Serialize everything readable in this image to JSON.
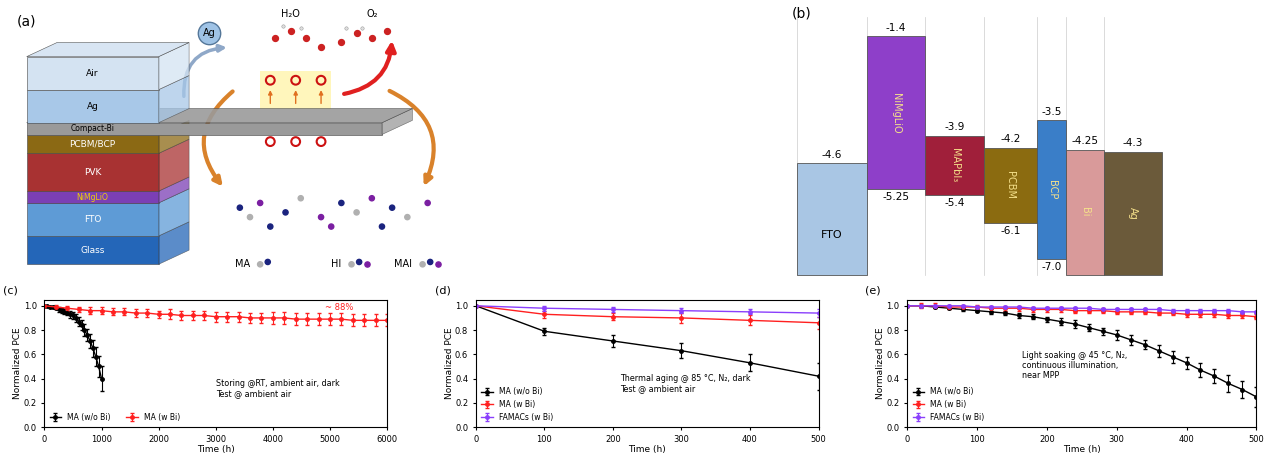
{
  "diagram_a": {
    "label": "(a)",
    "layers": [
      {
        "name": "Glass",
        "color": "#2466b8"
      },
      {
        "name": "FTO",
        "color": "#5e9bd6"
      },
      {
        "name": "NiMgLiO",
        "color": "#7b3fb5"
      },
      {
        "name": "PVK",
        "color": "#a83232"
      },
      {
        "name": "PCBM/BCP",
        "color": "#8b6914"
      },
      {
        "name": "Compact-Bi",
        "color": "#9a9a9a"
      },
      {
        "name": "Ag",
        "color": "#a8c8e8"
      },
      {
        "name": "Air",
        "color": "#d4e3f2"
      }
    ],
    "metal_ion": "Ag",
    "ambient": [
      "H₂O",
      "O₂"
    ],
    "species": [
      "MA",
      "HI",
      "MAI"
    ]
  },
  "diagram_b": {
    "label": "(b)",
    "layers": [
      {
        "name": "FTO",
        "top": -4.6,
        "bottom": null,
        "color": "#a9c6e4"
      },
      {
        "name": "NiMgLiO",
        "top": -1.4,
        "bottom": -5.25,
        "color": "#8e3fc9"
      },
      {
        "name": "MAPbI₃",
        "top": -3.9,
        "bottom": -5.4,
        "color": "#a01f3a"
      },
      {
        "name": "PCBM",
        "top": -4.2,
        "bottom": -6.1,
        "color": "#8b6b10"
      },
      {
        "name": "BCP",
        "top": -3.5,
        "bottom": -7.0,
        "color": "#3a7ec8"
      },
      {
        "name": "Bi",
        "top": -4.25,
        "bottom": null,
        "color": "#d99a9a"
      },
      {
        "name": "Ag",
        "top": -4.3,
        "bottom": null,
        "color": "#6b5a3a"
      }
    ]
  },
  "chart_data": [
    {
      "type": "line",
      "label": "(c)",
      "x_label": "Time (h)",
      "y_label": "Normalized PCE",
      "xlim": [
        0,
        6000
      ],
      "xticks": [
        0,
        1000,
        2000,
        3000,
        4000,
        5000,
        6000
      ],
      "ylim": [
        0.0,
        1.05
      ],
      "yticks": [
        0.0,
        0.2,
        0.4,
        0.6,
        0.8,
        1.0
      ],
      "legend": "lower left",
      "note": [
        "Storing @RT, ambient air, dark",
        "Test @ ambient air"
      ],
      "annotations": [
        {
          "text": "~ 88%",
          "color": "#ff2020"
        }
      ],
      "series": [
        {
          "name": "MA (w/o Bi)",
          "color": "#000000",
          "marker": "o",
          "x": [
            0,
            50,
            100,
            150,
            200,
            250,
            300,
            350,
            400,
            450,
            500,
            550,
            600,
            650,
            700,
            750,
            800,
            850,
            900,
            950,
            1000
          ],
          "values": [
            1.0,
            1.0,
            0.99,
            0.99,
            0.98,
            0.97,
            0.96,
            0.95,
            0.94,
            0.93,
            0.92,
            0.9,
            0.87,
            0.84,
            0.8,
            0.76,
            0.71,
            0.65,
            0.58,
            0.5,
            0.4
          ],
          "errors": [
            0.0,
            0.0,
            0.01,
            0.01,
            0.01,
            0.02,
            0.02,
            0.02,
            0.02,
            0.03,
            0.03,
            0.03,
            0.04,
            0.04,
            0.05,
            0.05,
            0.06,
            0.07,
            0.08,
            0.09,
            0.1
          ]
        },
        {
          "name": "MA (w Bi)",
          "color": "#ff2020",
          "marker": "o",
          "x": [
            0,
            200,
            400,
            600,
            800,
            1000,
            1200,
            1400,
            1600,
            1800,
            2000,
            2200,
            2400,
            2600,
            2800,
            3000,
            3200,
            3400,
            3600,
            3800,
            4000,
            4200,
            4400,
            4600,
            4800,
            5000,
            5200,
            5400,
            5600,
            5800,
            6000
          ],
          "values": [
            1.0,
            0.99,
            0.98,
            0.97,
            0.96,
            0.96,
            0.95,
            0.95,
            0.94,
            0.94,
            0.93,
            0.93,
            0.92,
            0.92,
            0.92,
            0.91,
            0.91,
            0.91,
            0.9,
            0.9,
            0.9,
            0.9,
            0.89,
            0.89,
            0.89,
            0.89,
            0.89,
            0.88,
            0.88,
            0.88,
            0.88
          ],
          "errors": [
            0.0,
            0.02,
            0.02,
            0.02,
            0.03,
            0.03,
            0.03,
            0.03,
            0.03,
            0.03,
            0.03,
            0.04,
            0.04,
            0.04,
            0.04,
            0.04,
            0.04,
            0.04,
            0.04,
            0.04,
            0.05,
            0.05,
            0.05,
            0.05,
            0.05,
            0.05,
            0.05,
            0.05,
            0.05,
            0.05,
            0.05
          ]
        }
      ]
    },
    {
      "type": "line",
      "label": "(d)",
      "x_label": "Time (h)",
      "y_label": "Normalized PCE",
      "xlim": [
        0,
        500
      ],
      "xticks": [
        0,
        100,
        200,
        300,
        400,
        500
      ],
      "ylim": [
        0.0,
        1.05
      ],
      "yticks": [
        0.0,
        0.2,
        0.4,
        0.6,
        0.8,
        1.0
      ],
      "legend": "lower left",
      "note": [
        "Thermal aging @ 85 °C, N₂, dark",
        "Test @ ambient air"
      ],
      "annotations": [],
      "series": [
        {
          "name": "MA (w/o Bi)",
          "color": "#000000",
          "marker": "o",
          "x": [
            0,
            100,
            200,
            300,
            400,
            500
          ],
          "values": [
            1.0,
            0.79,
            0.71,
            0.63,
            0.53,
            0.42
          ],
          "errors": [
            0.0,
            0.03,
            0.05,
            0.06,
            0.07,
            0.11
          ]
        },
        {
          "name": "MA (w Bi)",
          "color": "#ff2020",
          "marker": "o",
          "x": [
            0,
            100,
            200,
            300,
            400,
            500
          ],
          "values": [
            1.0,
            0.93,
            0.91,
            0.9,
            0.88,
            0.86
          ],
          "errors": [
            0.0,
            0.03,
            0.03,
            0.04,
            0.04,
            0.05
          ]
        },
        {
          "name": "FAMACs (w Bi)",
          "color": "#8a3ffc",
          "marker": "o",
          "x": [
            0,
            100,
            200,
            300,
            400,
            500
          ],
          "values": [
            1.0,
            0.98,
            0.97,
            0.96,
            0.95,
            0.94
          ],
          "errors": [
            0.0,
            0.02,
            0.02,
            0.02,
            0.02,
            0.03
          ]
        }
      ]
    },
    {
      "type": "line",
      "label": "(e)",
      "x_label": "Time (h)",
      "y_label": "Normalized PCE",
      "xlim": [
        0,
        500
      ],
      "xticks": [
        0,
        100,
        200,
        300,
        400,
        500
      ],
      "ylim": [
        0.0,
        1.05
      ],
      "yticks": [
        0.0,
        0.2,
        0.4,
        0.6,
        0.8,
        1.0
      ],
      "legend": "lower left",
      "note": [
        "Light soaking @ 45 °C, N₂,",
        "continuous illumination,",
        "near MPP"
      ],
      "annotations": [],
      "series": [
        {
          "name": "MA (w/o Bi)",
          "color": "#000000",
          "marker": "o",
          "x": [
            0,
            20,
            40,
            60,
            80,
            100,
            120,
            140,
            160,
            180,
            200,
            220,
            240,
            260,
            280,
            300,
            320,
            340,
            360,
            380,
            400,
            420,
            440,
            460,
            480,
            500
          ],
          "values": [
            1.0,
            1.0,
            0.99,
            0.98,
            0.97,
            0.96,
            0.95,
            0.94,
            0.92,
            0.91,
            0.89,
            0.87,
            0.85,
            0.82,
            0.79,
            0.76,
            0.72,
            0.68,
            0.63,
            0.58,
            0.53,
            0.47,
            0.42,
            0.36,
            0.31,
            0.25
          ],
          "errors": [
            0.0,
            0.01,
            0.01,
            0.01,
            0.01,
            0.01,
            0.02,
            0.02,
            0.02,
            0.02,
            0.02,
            0.03,
            0.03,
            0.03,
            0.03,
            0.04,
            0.04,
            0.04,
            0.05,
            0.05,
            0.05,
            0.06,
            0.06,
            0.07,
            0.07,
            0.08
          ]
        },
        {
          "name": "MA (w Bi)",
          "color": "#ff2020",
          "marker": "o",
          "x": [
            0,
            20,
            40,
            60,
            80,
            100,
            120,
            140,
            160,
            180,
            200,
            220,
            240,
            260,
            280,
            300,
            320,
            340,
            360,
            380,
            400,
            420,
            440,
            460,
            480,
            500
          ],
          "values": [
            1.0,
            1.0,
            1.0,
            0.99,
            0.99,
            0.99,
            0.98,
            0.98,
            0.98,
            0.97,
            0.97,
            0.97,
            0.96,
            0.96,
            0.96,
            0.95,
            0.95,
            0.95,
            0.94,
            0.94,
            0.93,
            0.93,
            0.93,
            0.92,
            0.92,
            0.91
          ],
          "errors": [
            0.0,
            0.02,
            0.02,
            0.02,
            0.02,
            0.02,
            0.02,
            0.02,
            0.02,
            0.02,
            0.02,
            0.02,
            0.02,
            0.02,
            0.02,
            0.02,
            0.02,
            0.02,
            0.02,
            0.02,
            0.02,
            0.02,
            0.02,
            0.02,
            0.02,
            0.02
          ]
        },
        {
          "name": "FAMACs (w Bi)",
          "color": "#8a3ffc",
          "marker": "o",
          "x": [
            0,
            20,
            40,
            60,
            80,
            100,
            120,
            140,
            160,
            180,
            200,
            220,
            240,
            260,
            280,
            300,
            320,
            340,
            360,
            380,
            400,
            420,
            440,
            460,
            480,
            500
          ],
          "values": [
            1.0,
            1.0,
            1.0,
            1.0,
            1.0,
            0.99,
            0.99,
            0.99,
            0.99,
            0.98,
            0.98,
            0.98,
            0.98,
            0.98,
            0.97,
            0.97,
            0.97,
            0.97,
            0.97,
            0.96,
            0.96,
            0.96,
            0.96,
            0.96,
            0.95,
            0.95
          ],
          "errors": [
            0.0,
            0.01,
            0.01,
            0.01,
            0.01,
            0.01,
            0.01,
            0.01,
            0.01,
            0.01,
            0.01,
            0.01,
            0.01,
            0.01,
            0.01,
            0.01,
            0.01,
            0.01,
            0.01,
            0.01,
            0.01,
            0.01,
            0.01,
            0.01,
            0.01,
            0.01
          ]
        }
      ]
    }
  ]
}
